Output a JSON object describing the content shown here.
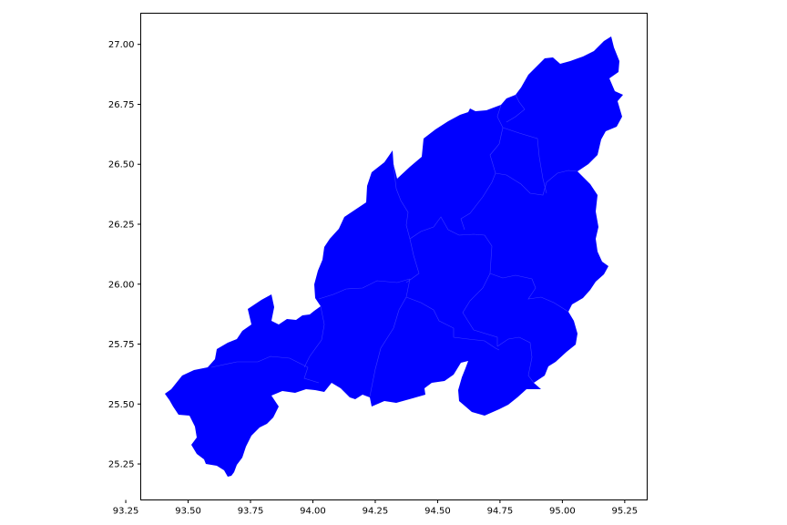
{
  "map": {
    "fill_color": "#0000ff",
    "boundary_color": "#3a3aff",
    "axis_color": "#000000",
    "x_range": [
      93.31,
      95.34
    ],
    "y_range": [
      25.1,
      27.13
    ],
    "x_ticks": [
      {
        "value": 93.25,
        "label": "93.25"
      },
      {
        "value": 93.5,
        "label": "93.50"
      },
      {
        "value": 93.75,
        "label": "93.75"
      },
      {
        "value": 94.0,
        "label": "94.00"
      },
      {
        "value": 94.25,
        "label": "94.25"
      },
      {
        "value": 94.5,
        "label": "94.50"
      },
      {
        "value": 94.75,
        "label": "94.75"
      },
      {
        "value": 95.0,
        "label": "95.00"
      },
      {
        "value": 95.25,
        "label": "95.25"
      }
    ],
    "y_ticks": [
      {
        "value": 25.25,
        "label": "25.25"
      },
      {
        "value": 25.5,
        "label": "25.50"
      },
      {
        "value": 25.75,
        "label": "25.75"
      },
      {
        "value": 26.0,
        "label": "26.00"
      },
      {
        "value": 26.25,
        "label": "26.25"
      },
      {
        "value": 26.5,
        "label": "26.50"
      },
      {
        "value": 26.75,
        "label": "26.75"
      },
      {
        "value": 27.0,
        "label": "27.00"
      }
    ]
  }
}
